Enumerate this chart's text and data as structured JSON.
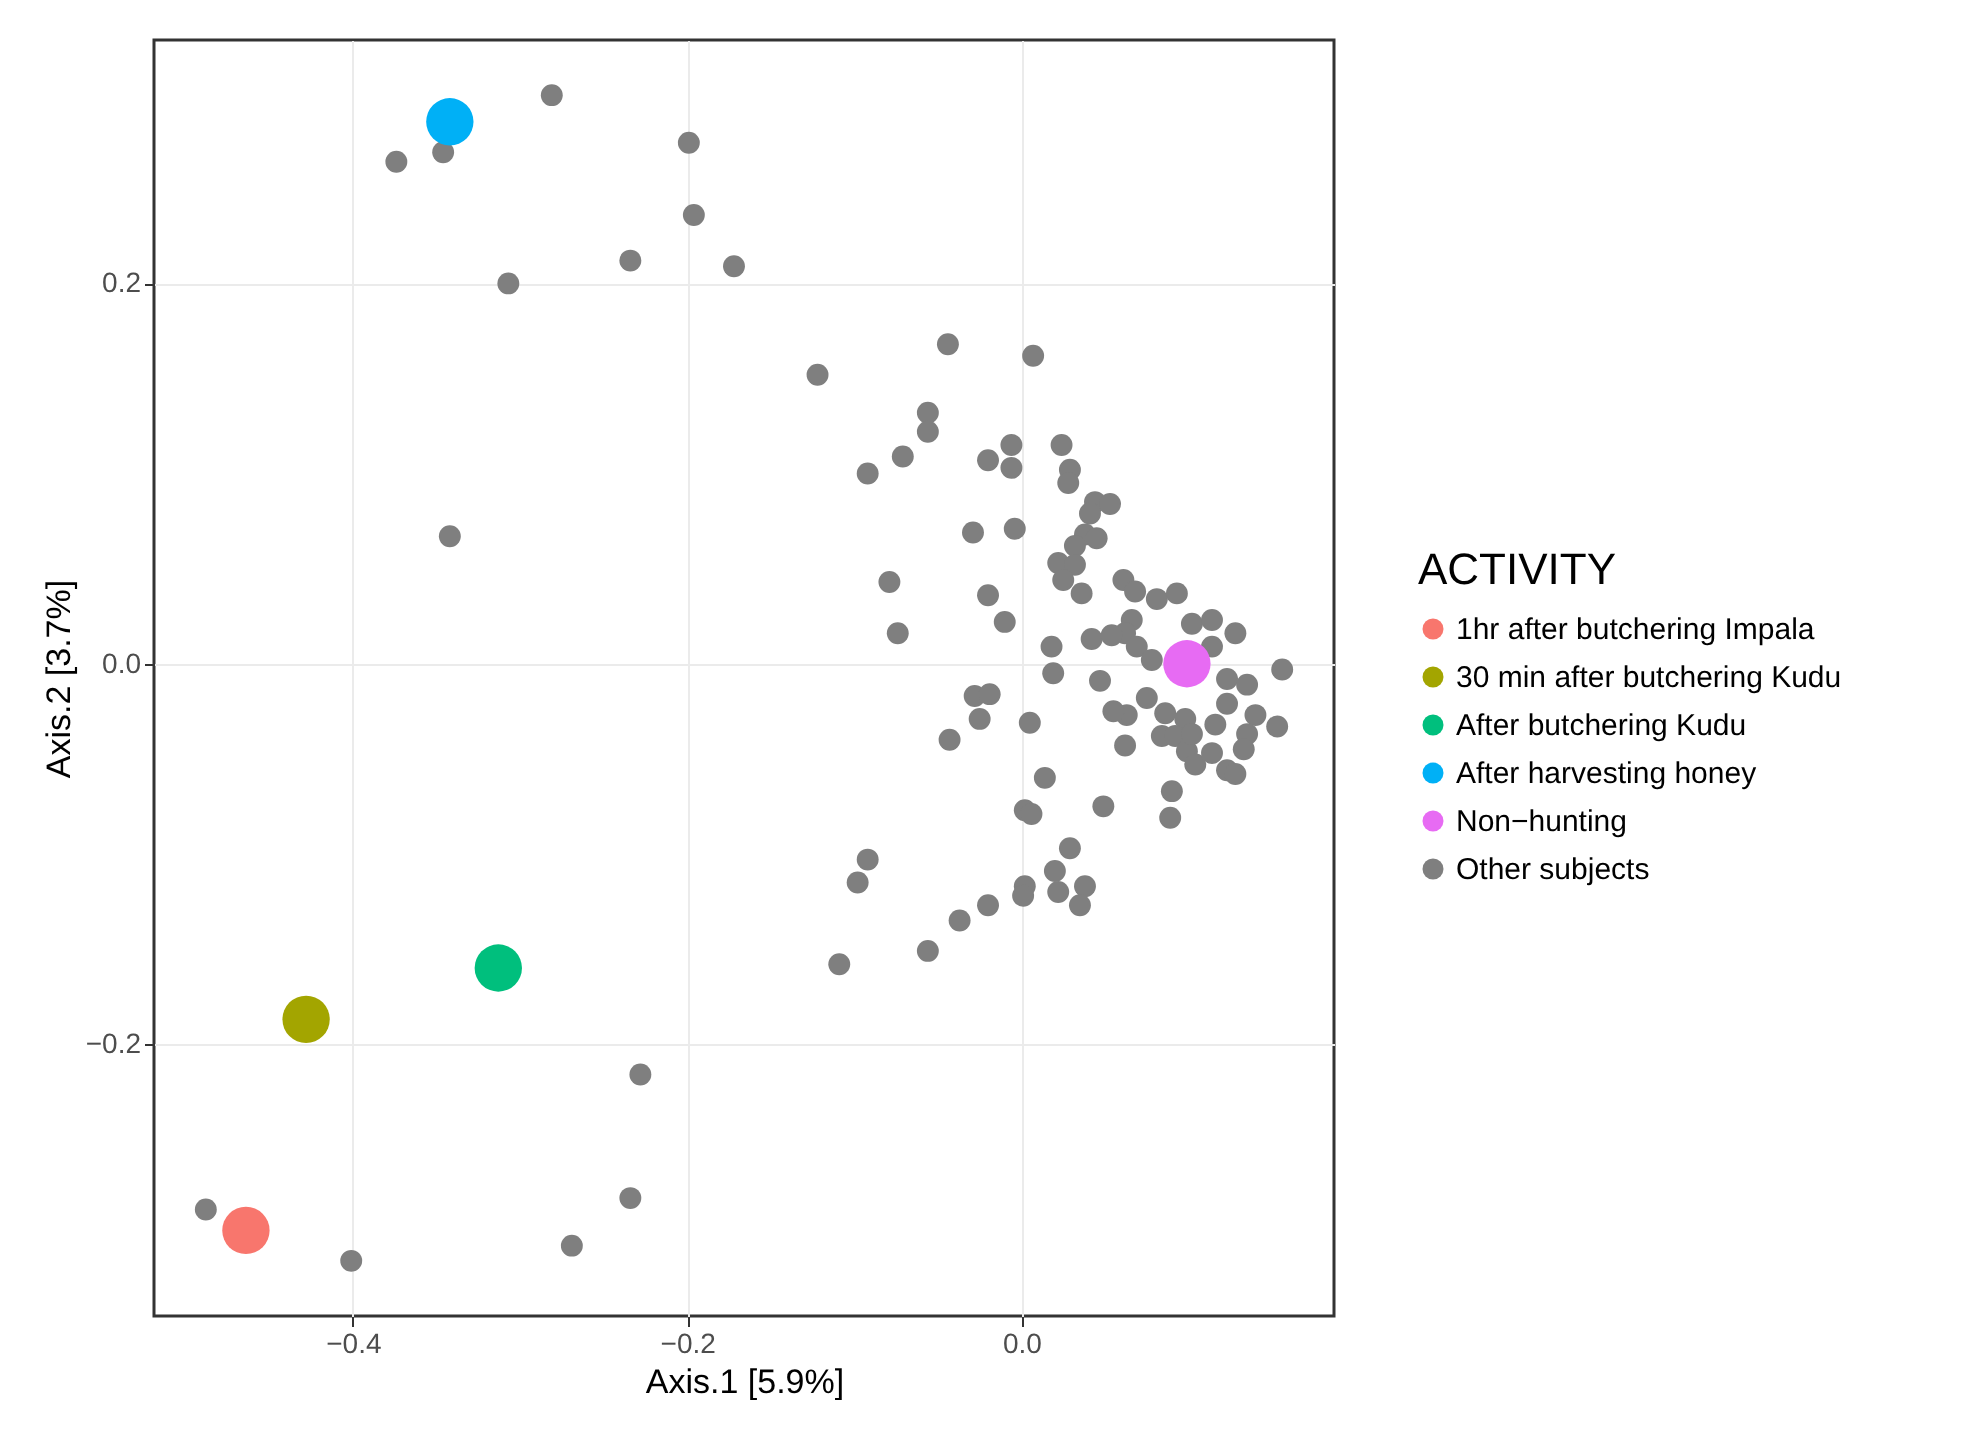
{
  "chart_data": {
    "type": "scatter",
    "xlabel": "Axis.1   [5.9%]",
    "ylabel": "Axis.2   [3.7%]",
    "legend_title": "ACTIVITY",
    "legend": "right",
    "grid": true,
    "marker": "circle",
    "xlim": [
      -0.519,
      0.187
    ],
    "ylim": [
      -0.343,
      0.328
    ],
    "xticks": [
      {
        "value": -0.4,
        "label": "−0.4"
      },
      {
        "value": -0.2,
        "label": "−0.2"
      },
      {
        "value": 0,
        "label": "0.0"
      }
    ],
    "yticks": [
      {
        "value": -0.2,
        "label": "−0.2"
      },
      {
        "value": 0,
        "label": "0.0"
      },
      {
        "value": 0.2,
        "label": "0.2"
      }
    ],
    "series": [
      {
        "name": "1hr after butchering Impala",
        "color": "#f8766d",
        "x": [
          -0.464
        ],
        "values": [
          -0.298
        ]
      },
      {
        "name": "30 min after butchering Kudu",
        "color": "#a3a500",
        "x": [
          -0.428
        ],
        "values": [
          -0.187
        ]
      },
      {
        "name": "After butchering Kudu",
        "color": "#00bf7d",
        "x": [
          -0.313
        ],
        "values": [
          -0.16
        ]
      },
      {
        "name": "After harvesting honey",
        "color": "#00b0f6",
        "x": [
          -0.342
        ],
        "values": [
          0.285
        ]
      },
      {
        "name": "Non−hunting",
        "color": "#e76bf3",
        "x": [
          0.099
        ],
        "values": [
          0.0
        ]
      },
      {
        "name": "Other subjects",
        "color": "#7f7f7f",
        "x": [
          -0.281,
          -0.374,
          -0.346,
          -0.199,
          -0.196,
          -0.234,
          -0.172,
          -0.307,
          -0.342,
          -0.122,
          -0.044,
          0.007,
          -0.056,
          -0.056,
          -0.071,
          -0.092,
          -0.02,
          -0.006,
          -0.006,
          0.024,
          0.029,
          0.028,
          0.044,
          0.053,
          0.041,
          -0.029,
          -0.004,
          0.038,
          0.045,
          0.032,
          0.022,
          0.032,
          0.025,
          0.036,
          0.061,
          0.068,
          0.081,
          0.093,
          -0.079,
          -0.02,
          -0.01,
          -0.074,
          0.018,
          0.019,
          0.047,
          -0.028,
          -0.019,
          -0.025,
          -0.043,
          0.005,
          0.014,
          0.002,
          0.006,
          0.049,
          0.09,
          0.089,
          0.029,
          -0.092,
          -0.098,
          0.02,
          0.022,
          0.002,
          0.001,
          0.038,
          0.035,
          -0.02,
          -0.037,
          -0.056,
          -0.109,
          0.066,
          0.062,
          0.042,
          0.054,
          0.069,
          0.102,
          0.114,
          0.128,
          0.114,
          0.123,
          0.135,
          0.075,
          0.063,
          0.062,
          0.086,
          0.098,
          0.116,
          0.123,
          0.14,
          0.153,
          0.084,
          0.092,
          0.135,
          0.133,
          0.099,
          0.104,
          0.114,
          0.123,
          0.128,
          0.102,
          0.078,
          0.055,
          0.156,
          -0.228,
          -0.234,
          -0.269,
          -0.488,
          -0.401
        ],
        "values": [
          0.299,
          0.264,
          0.269,
          0.274,
          0.236,
          0.212,
          0.209,
          0.2,
          0.067,
          0.152,
          0.168,
          0.162,
          0.132,
          0.122,
          0.109,
          0.1,
          0.107,
          0.115,
          0.103,
          0.115,
          0.102,
          0.095,
          0.085,
          0.084,
          0.079,
          0.069,
          0.071,
          0.068,
          0.066,
          0.062,
          0.053,
          0.052,
          0.044,
          0.037,
          0.044,
          0.038,
          0.034,
          0.037,
          0.043,
          0.036,
          0.022,
          0.016,
          0.009,
          -0.005,
          -0.009,
          -0.017,
          -0.016,
          -0.029,
          -0.04,
          -0.031,
          -0.06,
          -0.077,
          -0.079,
          -0.075,
          -0.067,
          -0.081,
          -0.097,
          -0.103,
          -0.115,
          -0.109,
          -0.12,
          -0.117,
          -0.122,
          -0.117,
          -0.127,
          -0.127,
          -0.135,
          -0.151,
          -0.158,
          0.023,
          0.016,
          0.013,
          0.015,
          0.009,
          0.021,
          0.023,
          0.016,
          0.009,
          -0.008,
          -0.011,
          -0.018,
          -0.027,
          -0.043,
          -0.026,
          -0.029,
          -0.032,
          -0.021,
          -0.027,
          -0.033,
          -0.038,
          -0.038,
          -0.037,
          -0.045,
          -0.046,
          -0.053,
          -0.047,
          -0.056,
          -0.058,
          -0.037,
          0.002,
          -0.025,
          -0.003,
          -0.216,
          -0.281,
          -0.306,
          -0.287,
          -0.314
        ]
      }
    ]
  }
}
